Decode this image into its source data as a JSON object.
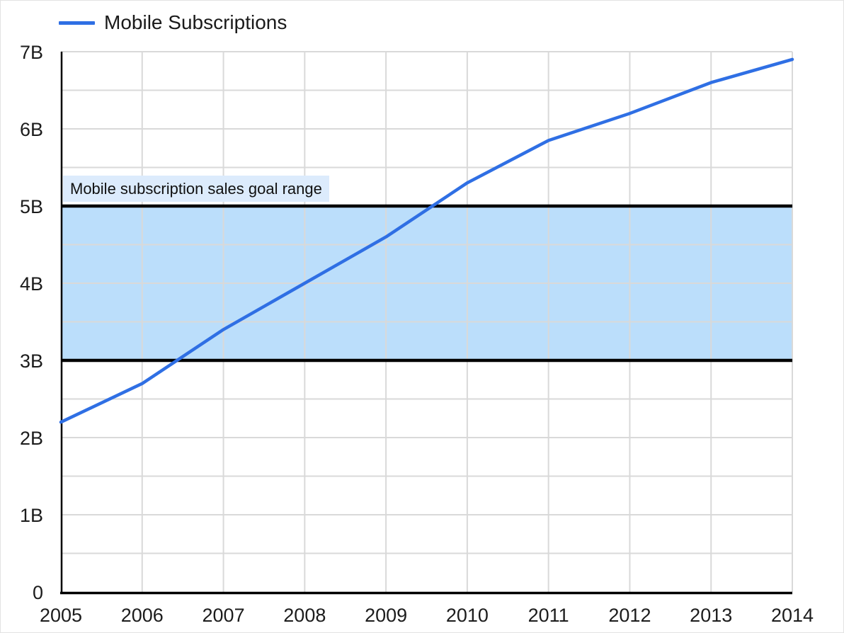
{
  "legend": {
    "label": "Mobile Subscriptions"
  },
  "annotation": {
    "label": "Mobile subscription sales goal range"
  },
  "colors": {
    "line": "#2f6fe4",
    "band_fill": "#bbdefb",
    "band_border": "#000000",
    "annotation_bg": "#dcebfc",
    "grid": "#d9d9d9",
    "axis": "#000000",
    "text": "#1c1c1c"
  },
  "chart_data": {
    "type": "line",
    "title": "",
    "xlabel": "",
    "ylabel": "",
    "legend_position": "top-left",
    "grid": true,
    "xlim": [
      2005,
      2014
    ],
    "ylim": [
      0,
      7
    ],
    "y_minor_step": 0.5,
    "x_ticks": [
      "2005",
      "2006",
      "2007",
      "2008",
      "2009",
      "2010",
      "2011",
      "2012",
      "2013",
      "2014"
    ],
    "y_ticks": [
      "0",
      "1B",
      "2B",
      "3B",
      "4B",
      "5B",
      "6B",
      "7B"
    ],
    "y_tick_values": [
      0,
      1,
      2,
      3,
      4,
      5,
      6,
      7
    ],
    "series": [
      {
        "name": "Mobile Subscriptions",
        "color": "#2f6fe4",
        "x": [
          2005,
          2006,
          2007,
          2008,
          2009,
          2010,
          2011,
          2012,
          2013,
          2014
        ],
        "values": [
          2.2,
          2.7,
          3.4,
          4.0,
          4.6,
          5.3,
          5.85,
          6.2,
          6.6,
          6.9
        ]
      }
    ],
    "band": {
      "label": "Mobile subscription sales goal range",
      "from": 3,
      "to": 5
    }
  }
}
